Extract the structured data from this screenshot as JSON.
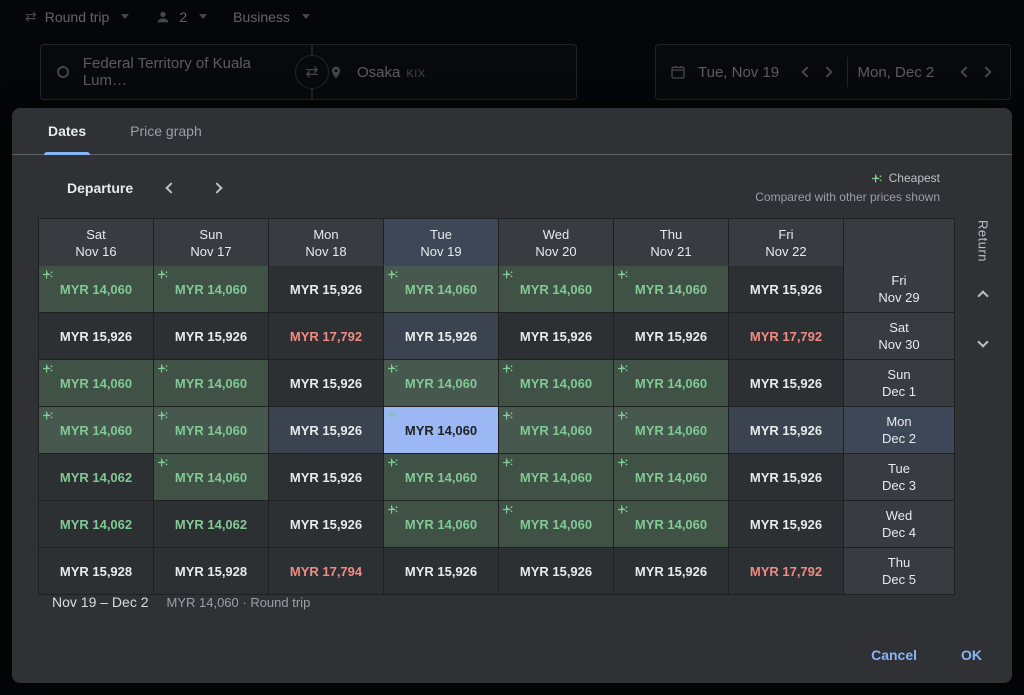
{
  "top_bar": {
    "trip_type": "Round trip",
    "passengers": "2",
    "cabin_class": "Business",
    "origin": "Federal Territory of Kuala Lum…",
    "destination": "Osaka",
    "destination_code": "KIX",
    "depart_date": "Tue, Nov 19",
    "return_date": "Mon, Dec 2"
  },
  "dialog": {
    "tabs": [
      {
        "label": "Dates"
      },
      {
        "label": "Price graph"
      }
    ],
    "departure_label": "Departure",
    "return_label": "Return",
    "legend": {
      "cheapest": "Cheapest",
      "note": "Compared with other prices shown"
    },
    "summary": {
      "range": "Nov 19 – Dec 2",
      "detail": "MYR 14,060 · Round trip"
    },
    "actions": {
      "cancel": "Cancel",
      "ok": "OK"
    }
  },
  "grid": {
    "departure_days": [
      {
        "dow": "Sat",
        "date": "Nov 16"
      },
      {
        "dow": "Sun",
        "date": "Nov 17"
      },
      {
        "dow": "Mon",
        "date": "Nov 18"
      },
      {
        "dow": "Tue",
        "date": "Nov 19"
      },
      {
        "dow": "Wed",
        "date": "Nov 20"
      },
      {
        "dow": "Thu",
        "date": "Nov 21"
      },
      {
        "dow": "Fri",
        "date": "Nov 22"
      }
    ],
    "return_days": [
      {
        "dow": "Fri",
        "date": "Nov 29"
      },
      {
        "dow": "Sat",
        "date": "Nov 30"
      },
      {
        "dow": "Sun",
        "date": "Dec 1"
      },
      {
        "dow": "Mon",
        "date": "Dec 2"
      },
      {
        "dow": "Tue",
        "date": "Dec 3"
      },
      {
        "dow": "Wed",
        "date": "Dec 4"
      },
      {
        "dow": "Thu",
        "date": "Dec 5"
      }
    ],
    "selected_departure_index": 3,
    "selected_return_index": 3,
    "rows": [
      [
        {
          "price": "MYR 14,060",
          "tone": "cheapest",
          "sparkle": true
        },
        {
          "price": "MYR 14,060",
          "tone": "cheapest",
          "sparkle": true
        },
        {
          "price": "MYR 15,926",
          "tone": "normal",
          "sparkle": false
        },
        {
          "price": "MYR 14,060",
          "tone": "cheapest",
          "sparkle": true
        },
        {
          "price": "MYR 14,060",
          "tone": "cheapest",
          "sparkle": true
        },
        {
          "price": "MYR 14,060",
          "tone": "cheapest",
          "sparkle": true
        },
        {
          "price": "MYR 15,926",
          "tone": "normal",
          "sparkle": false
        }
      ],
      [
        {
          "price": "MYR 15,926",
          "tone": "normal",
          "sparkle": false
        },
        {
          "price": "MYR 15,926",
          "tone": "normal",
          "sparkle": false
        },
        {
          "price": "MYR 17,792",
          "tone": "high",
          "sparkle": false
        },
        {
          "price": "MYR 15,926",
          "tone": "normal",
          "sparkle": false
        },
        {
          "price": "MYR 15,926",
          "tone": "normal",
          "sparkle": false
        },
        {
          "price": "MYR 15,926",
          "tone": "normal",
          "sparkle": false
        },
        {
          "price": "MYR 17,792",
          "tone": "high",
          "sparkle": false
        }
      ],
      [
        {
          "price": "MYR 14,060",
          "tone": "cheapest",
          "sparkle": true
        },
        {
          "price": "MYR 14,060",
          "tone": "cheapest",
          "sparkle": true
        },
        {
          "price": "MYR 15,926",
          "tone": "normal",
          "sparkle": false
        },
        {
          "price": "MYR 14,060",
          "tone": "cheapest",
          "sparkle": true
        },
        {
          "price": "MYR 14,060",
          "tone": "cheapest",
          "sparkle": true
        },
        {
          "price": "MYR 14,060",
          "tone": "cheapest",
          "sparkle": true
        },
        {
          "price": "MYR 15,926",
          "tone": "normal",
          "sparkle": false
        }
      ],
      [
        {
          "price": "MYR 14,060",
          "tone": "cheapest",
          "sparkle": true
        },
        {
          "price": "MYR 14,060",
          "tone": "cheapest",
          "sparkle": true
        },
        {
          "price": "MYR 15,926",
          "tone": "normal",
          "sparkle": false
        },
        {
          "price": "MYR 14,060",
          "tone": "cheapest",
          "sparkle": true,
          "selected": true
        },
        {
          "price": "MYR 14,060",
          "tone": "cheapest",
          "sparkle": true
        },
        {
          "price": "MYR 14,060",
          "tone": "cheapest",
          "sparkle": true
        },
        {
          "price": "MYR 15,926",
          "tone": "normal",
          "sparkle": false
        }
      ],
      [
        {
          "price": "MYR 14,062",
          "tone": "low",
          "sparkle": false
        },
        {
          "price": "MYR 14,060",
          "tone": "cheapest",
          "sparkle": true
        },
        {
          "price": "MYR 15,926",
          "tone": "normal",
          "sparkle": false
        },
        {
          "price": "MYR 14,060",
          "tone": "cheapest",
          "sparkle": true
        },
        {
          "price": "MYR 14,060",
          "tone": "cheapest",
          "sparkle": true
        },
        {
          "price": "MYR 14,060",
          "tone": "cheapest",
          "sparkle": true
        },
        {
          "price": "MYR 15,926",
          "tone": "normal",
          "sparkle": false
        }
      ],
      [
        {
          "price": "MYR 14,062",
          "tone": "low",
          "sparkle": false
        },
        {
          "price": "MYR 14,062",
          "tone": "low",
          "sparkle": false
        },
        {
          "price": "MYR 15,926",
          "tone": "normal",
          "sparkle": false
        },
        {
          "price": "MYR 14,060",
          "tone": "cheapest",
          "sparkle": true
        },
        {
          "price": "MYR 14,060",
          "tone": "cheapest",
          "sparkle": true
        },
        {
          "price": "MYR 14,060",
          "tone": "cheapest",
          "sparkle": true
        },
        {
          "price": "MYR 15,926",
          "tone": "normal",
          "sparkle": false
        }
      ],
      [
        {
          "price": "MYR 15,928",
          "tone": "normal",
          "sparkle": false
        },
        {
          "price": "MYR 15,928",
          "tone": "normal",
          "sparkle": false
        },
        {
          "price": "MYR 17,794",
          "tone": "high",
          "sparkle": false
        },
        {
          "price": "MYR 15,926",
          "tone": "normal",
          "sparkle": false
        },
        {
          "price": "MYR 15,926",
          "tone": "normal",
          "sparkle": false
        },
        {
          "price": "MYR 15,926",
          "tone": "normal",
          "sparkle": false
        },
        {
          "price": "MYR 17,792",
          "tone": "high",
          "sparkle": false
        }
      ]
    ]
  },
  "colors": {
    "accent_blue": "#8ab4f8",
    "cheapest_green": "#81c995",
    "high_red": "#f28b82",
    "selected_cell_bg": "#9bb8f4",
    "surface": "#2f3134"
  }
}
